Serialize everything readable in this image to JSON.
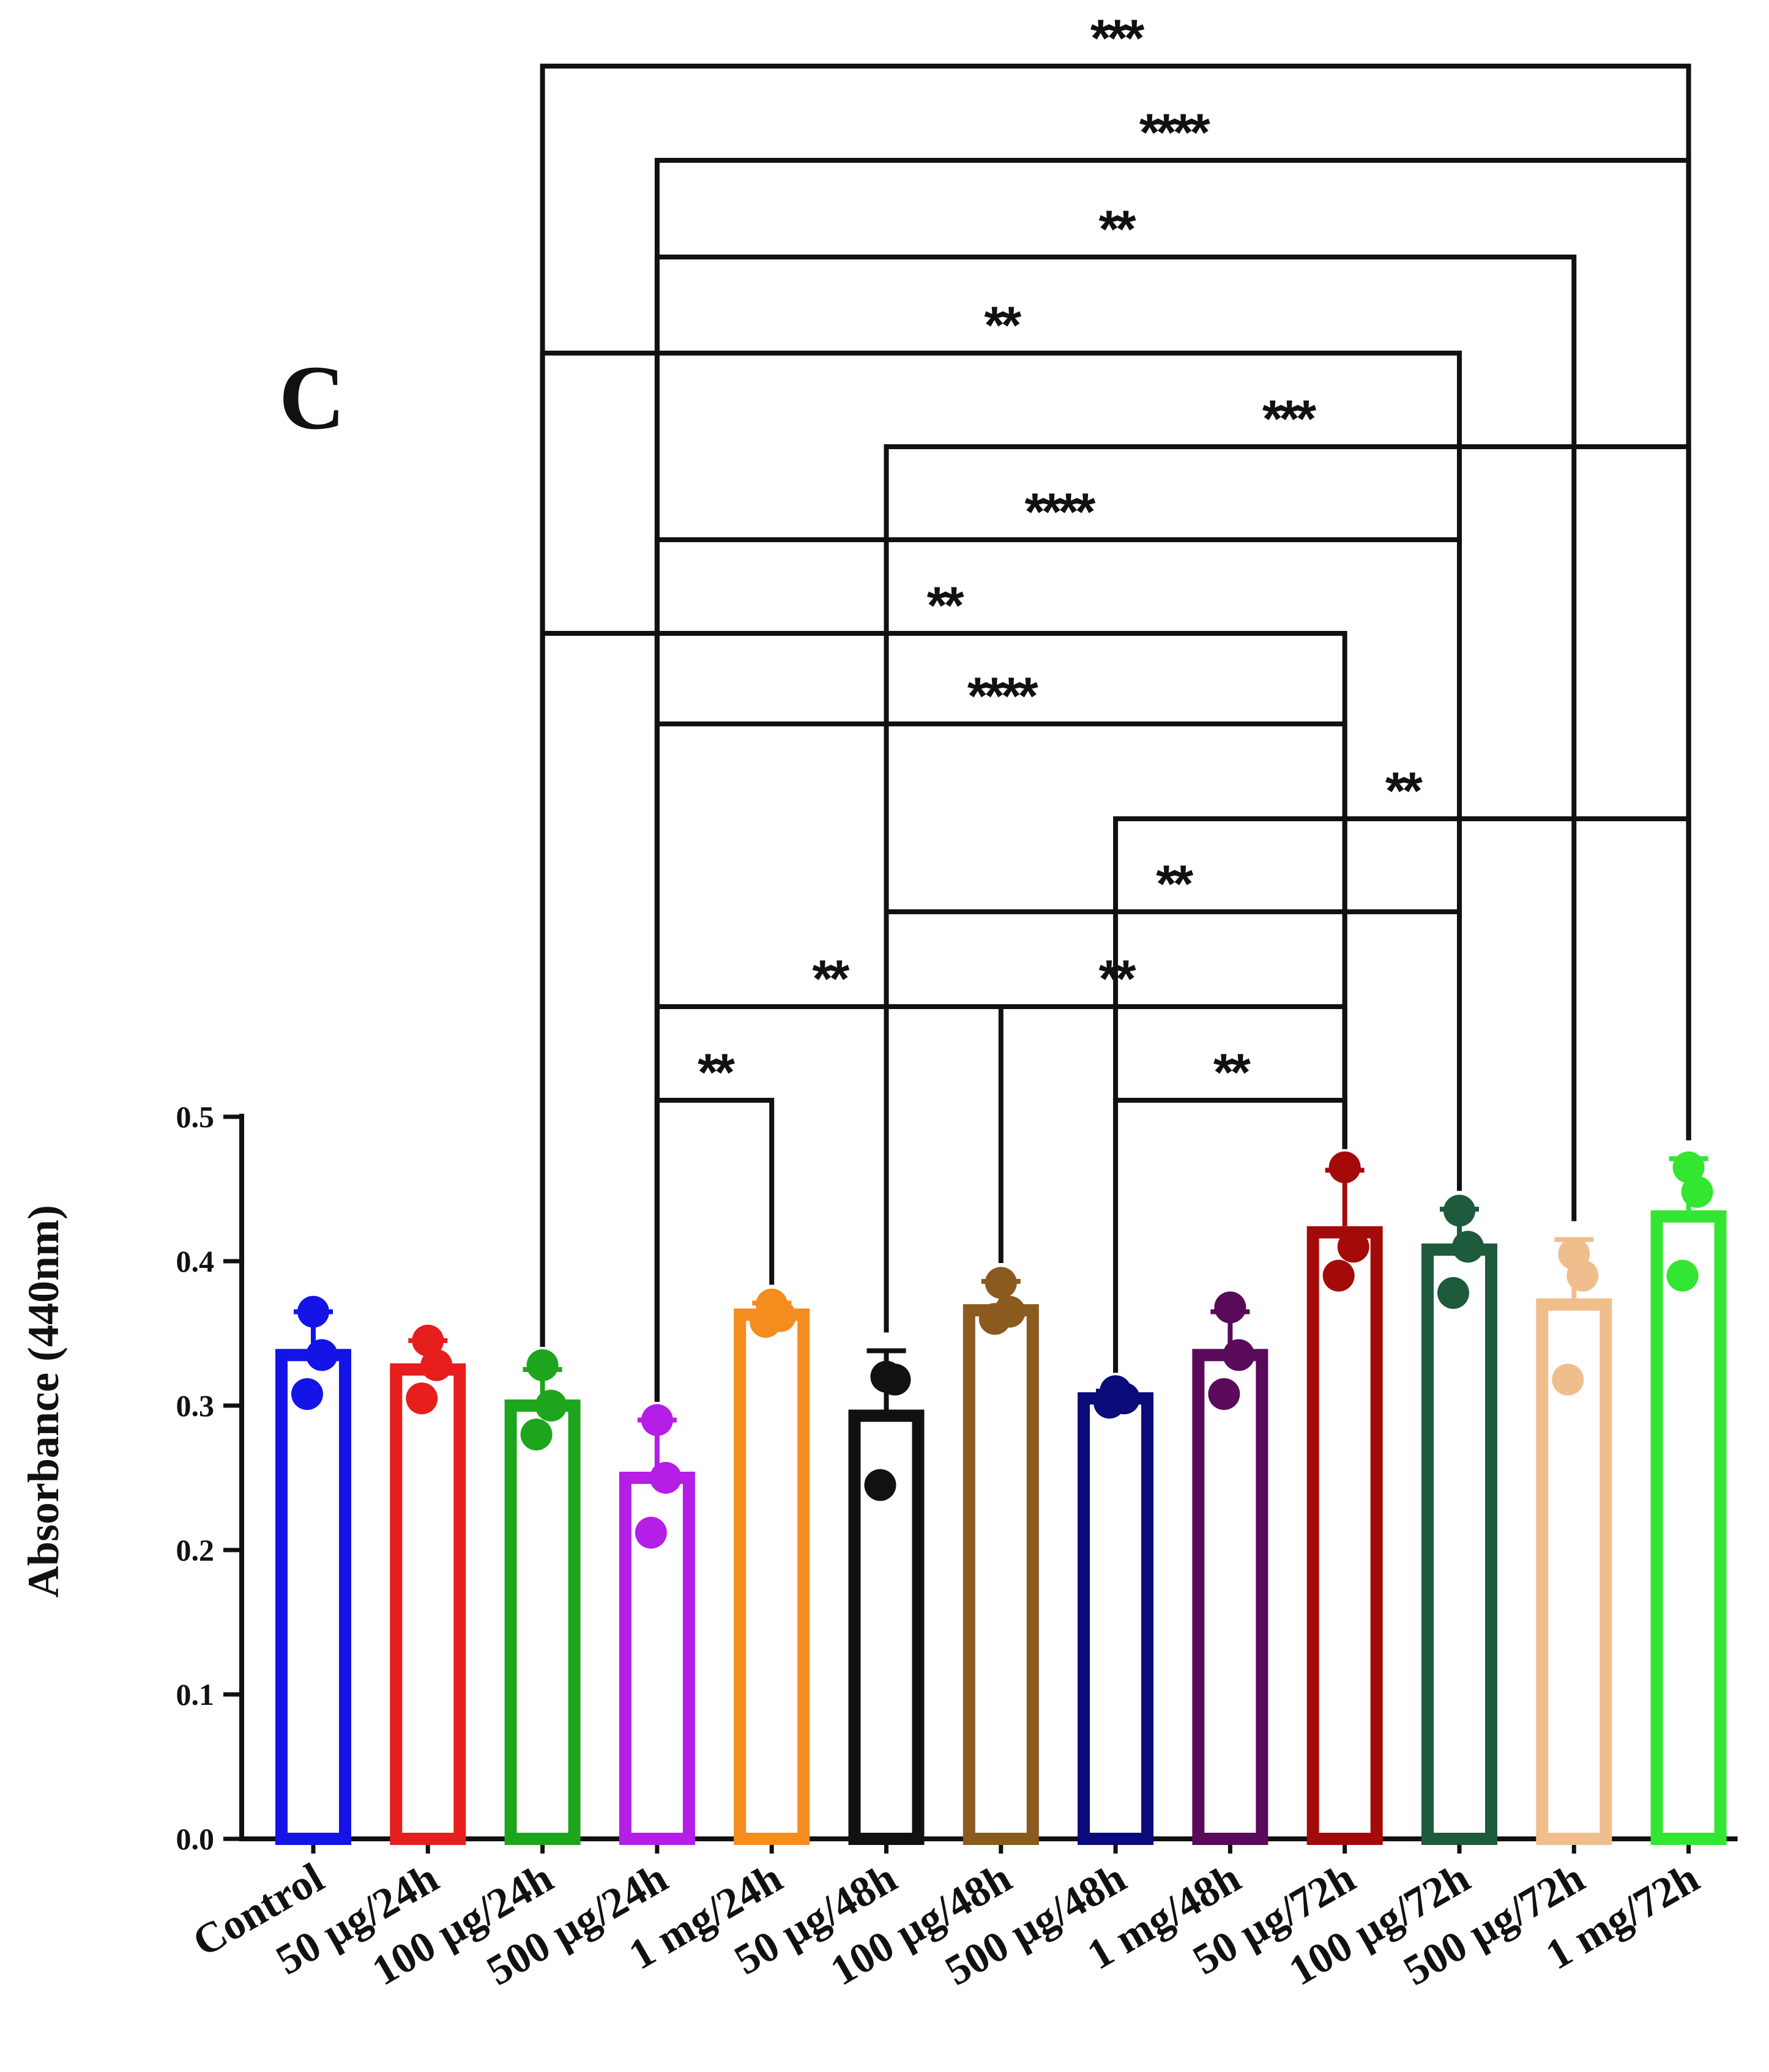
{
  "chart_data": {
    "type": "bar",
    "panel_label": "C",
    "title": "",
    "xlabel": "",
    "ylabel": "Absorbance (440nm)",
    "ylim": [
      0,
      0.5
    ],
    "yticks": [
      0.0,
      0.1,
      0.2,
      0.3,
      0.4,
      0.5
    ],
    "ytick_labels": [
      "0.0",
      "0.1",
      "0.2",
      "0.3",
      "0.4",
      "0.5"
    ],
    "grid": false,
    "categories": [
      "Control",
      "50 µg/24h",
      "100 µg/24h",
      "500 µg/24h",
      "1 mg/24h",
      "50 µg/48h",
      "100 µg/48h",
      "500 µg/48h",
      "1 mg/48h",
      "50 µg/72h",
      "100 µg/72h",
      "500 µg/72h",
      "1 mg/72h"
    ],
    "colors": [
      "#1414e6",
      "#e61e1e",
      "#1ea51e",
      "#b41ee6",
      "#f58c1e",
      "#111111",
      "#8b5a1e",
      "#0a0a7a",
      "#5a0a5a",
      "#a50a0a",
      "#1e5a3c",
      "#f0be8c",
      "#32e632"
    ],
    "values": [
      0.335,
      0.325,
      0.3,
      0.25,
      0.363,
      0.293,
      0.366,
      0.305,
      0.335,
      0.42,
      0.408,
      0.37,
      0.431
    ],
    "errors": [
      0.03,
      0.02,
      0.025,
      0.04,
      0.008,
      0.045,
      0.02,
      0.005,
      0.03,
      0.043,
      0.028,
      0.045,
      0.04
    ],
    "points": [
      [
        0.365,
        0.335,
        0.308
      ],
      [
        0.345,
        0.328,
        0.305
      ],
      [
        0.328,
        0.3,
        0.28
      ],
      [
        0.29,
        0.25,
        0.212
      ],
      [
        0.37,
        0.362,
        0.358
      ],
      [
        0.32,
        0.318,
        0.245
      ],
      [
        0.385,
        0.365,
        0.36
      ],
      [
        0.31,
        0.305,
        0.302
      ],
      [
        0.368,
        0.335,
        0.308
      ],
      [
        0.465,
        0.41,
        0.39
      ],
      [
        0.435,
        0.41,
        0.378
      ],
      [
        0.405,
        0.39,
        0.318
      ],
      [
        0.465,
        0.448,
        0.39
      ]
    ],
    "comparisons": [
      {
        "a": 3,
        "b": 4,
        "label": "**"
      },
      {
        "a": 7,
        "b": 9,
        "label": "**"
      },
      {
        "a": 3,
        "b": 6,
        "label": "**"
      },
      {
        "a": 7,
        "b": 12,
        "label": "**"
      },
      {
        "a": 5,
        "b": 9,
        "label": "**"
      },
      {
        "a": 5,
        "b": 10,
        "label": "**"
      },
      {
        "a": 3,
        "b": 9,
        "label": "****"
      },
      {
        "a": 2,
        "b": 9,
        "label": "**"
      },
      {
        "a": 3,
        "b": 10,
        "label": "****"
      },
      {
        "a": 5,
        "b": 12,
        "label": "***"
      },
      {
        "a": 2,
        "b": 10,
        "label": "**"
      },
      {
        "a": 3,
        "b": 11,
        "label": "**"
      },
      {
        "a": 3,
        "b": 12,
        "label": "****"
      },
      {
        "a": 2,
        "b": 12,
        "label": "***"
      }
    ]
  }
}
